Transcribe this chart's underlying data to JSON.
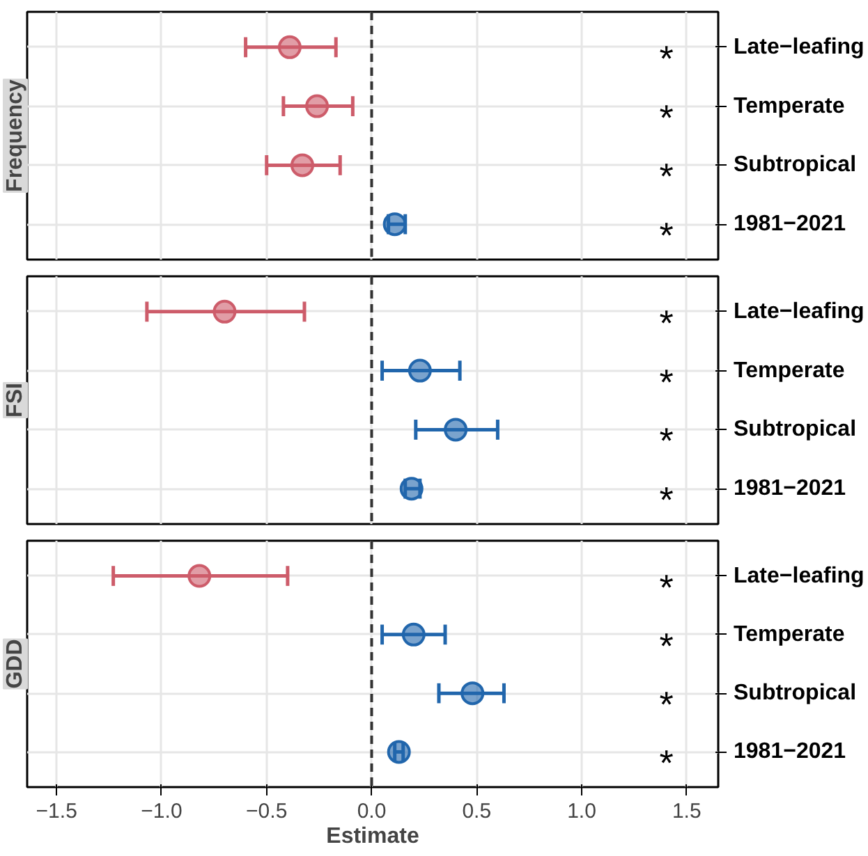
{
  "chart_data": [
    {
      "type": "scatter",
      "orientation": "horizontal",
      "ylabel": "Frequency",
      "categories": [
        "Late−leafing",
        "Temperate",
        "Subtropical",
        "1981−2021"
      ],
      "values": [
        -0.39,
        -0.26,
        -0.33,
        0.11
      ],
      "errors": [
        [
          -0.6,
          -0.17
        ],
        [
          -0.42,
          -0.09
        ],
        [
          -0.5,
          -0.15
        ],
        [
          0.08,
          0.16
        ]
      ],
      "colors": [
        "#cd5c6a",
        "#cd5c6a",
        "#cd5c6a",
        "#2166ac"
      ],
      "xlim": [
        -1.64,
        1.65
      ],
      "xticks": [
        -1.5,
        -1,
        -0.5,
        0,
        0.5,
        1,
        1.5
      ],
      "tick_labels": "y",
      "grid": true,
      "marker": "circle",
      "ref_lines": [
        {
          "axis": "x",
          "value": 0,
          "line_style": "dashed",
          "color": "#333333"
        }
      ],
      "annotations": [
        "*",
        "*",
        "*",
        "*"
      ]
    },
    {
      "type": "scatter",
      "orientation": "horizontal",
      "ylabel": "FSI",
      "categories": [
        "Late−leafing",
        "Temperate",
        "Subtropical",
        "1981−2021"
      ],
      "values": [
        -0.7,
        0.23,
        0.4,
        0.19
      ],
      "errors": [
        [
          -1.07,
          -0.32
        ],
        [
          0.05,
          0.42
        ],
        [
          0.21,
          0.6
        ],
        [
          0.16,
          0.23
        ]
      ],
      "colors": [
        "#cd5c6a",
        "#2166ac",
        "#2166ac",
        "#2166ac"
      ],
      "xlim": [
        -1.64,
        1.65
      ],
      "xticks": [
        -1.5,
        -1,
        -0.5,
        0,
        0.5,
        1,
        1.5
      ],
      "tick_labels": "y",
      "grid": true,
      "marker": "circle",
      "ref_lines": [
        {
          "axis": "x",
          "value": 0,
          "line_style": "dashed",
          "color": "#333333"
        }
      ],
      "annotations": [
        "*",
        "*",
        "*",
        "*"
      ]
    },
    {
      "type": "scatter",
      "orientation": "horizontal",
      "ylabel": "GDD",
      "xlabel": "Estimate",
      "categories": [
        "Late−leafing",
        "Temperate",
        "Subtropical",
        "1981−2021"
      ],
      "values": [
        -0.82,
        0.2,
        0.48,
        0.13
      ],
      "errors": [
        [
          -1.23,
          -0.4
        ],
        [
          0.05,
          0.35
        ],
        [
          0.32,
          0.63
        ],
        [
          0.11,
          0.15
        ]
      ],
      "colors": [
        "#cd5c6a",
        "#2166ac",
        "#2166ac",
        "#2166ac"
      ],
      "xlim": [
        -1.64,
        1.65
      ],
      "xticks": [
        {
          "value": -1.5,
          "label": "−1.5"
        },
        {
          "value": -1,
          "label": "−1.0"
        },
        {
          "value": -0.5,
          "label": "−0.5"
        },
        {
          "value": 0,
          "label": "0.0"
        },
        {
          "value": 0.5,
          "label": "0.5"
        },
        {
          "value": 1,
          "label": "1.0"
        },
        {
          "value": 1.5,
          "label": "1.5"
        }
      ],
      "grid": true,
      "marker": "circle",
      "ref_lines": [
        {
          "axis": "x",
          "value": 0,
          "line_style": "dashed",
          "color": "#333333"
        }
      ],
      "annotations": [
        "*",
        "*",
        "*",
        "*"
      ]
    }
  ]
}
